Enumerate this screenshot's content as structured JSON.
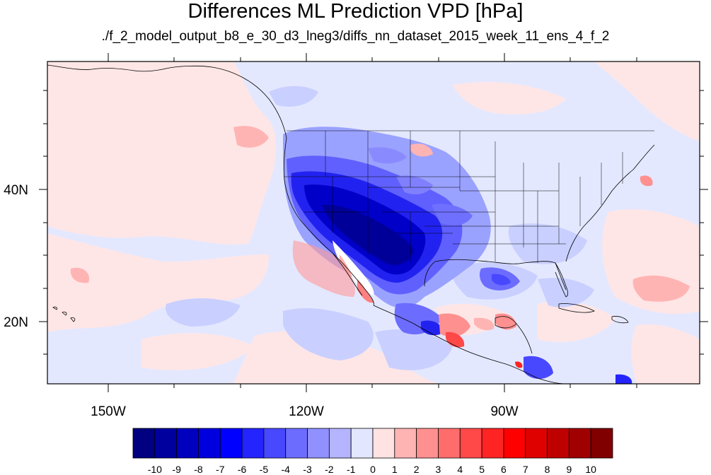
{
  "title": "Differences ML Prediction VPD [hPa]",
  "subtitle": "./f_2_model_output_b8_e_30_d3_lneg3/diffs_nn_dataset_2015_week_11_ens_4_f_2",
  "axes": {
    "x_labels": [
      "150W",
      "120W",
      "90W"
    ],
    "y_labels": [
      "40N",
      "20N"
    ]
  },
  "colorbar": {
    "labels": [
      "-10",
      "-9",
      "-8",
      "-7",
      "-6",
      "-5",
      "-4",
      "-3",
      "-2",
      "-1",
      "0",
      "1",
      "2",
      "3",
      "4",
      "5",
      "6",
      "7",
      "8",
      "9",
      "10"
    ],
    "colors": [
      "#000080",
      "#00009f",
      "#0000bf",
      "#0000df",
      "#0000ff",
      "#2424ff",
      "#4848ff",
      "#6c6cff",
      "#9090ff",
      "#b4b4ff",
      "#e2e6ff",
      "#ffe2e2",
      "#ffb4b4",
      "#ff9090",
      "#ff6c6c",
      "#ff4848",
      "#ff2424",
      "#ff0000",
      "#df0000",
      "#bf0000",
      "#9f0000",
      "#800000"
    ]
  },
  "palette": {
    "ocean_pale_blue": "#e4e8ff",
    "ocean_pale_red": "#ffe6e6",
    "coastline": "#000000"
  }
}
